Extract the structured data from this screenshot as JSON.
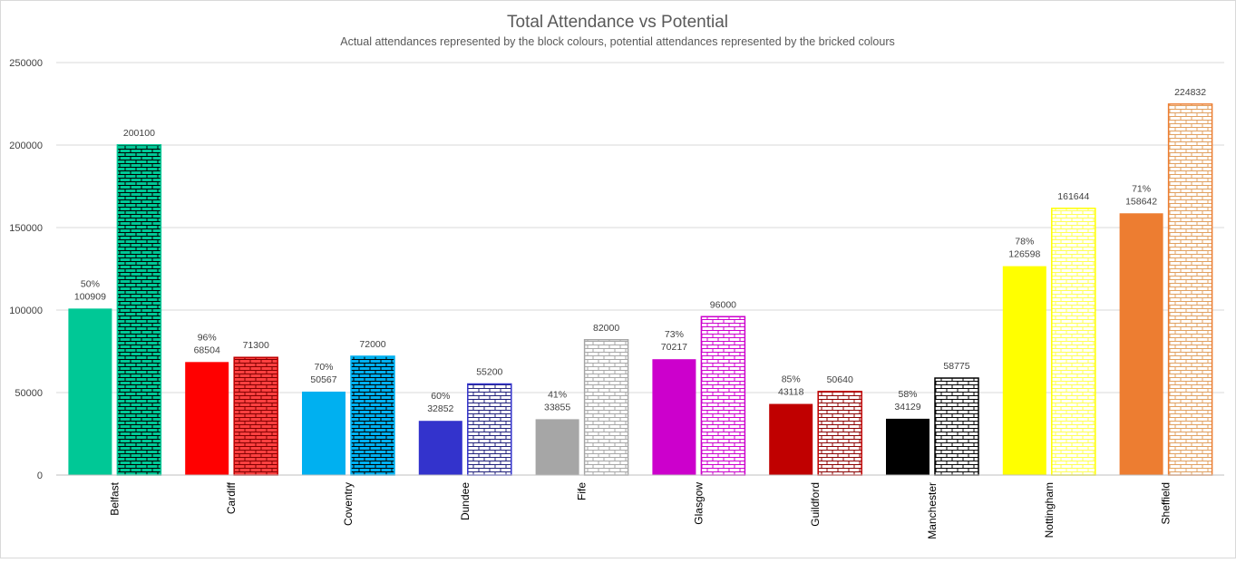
{
  "chart_data": {
    "type": "bar",
    "title": "Total Attendance vs Potential",
    "subtitle": "Actual attendances represented by the block colours, potential attendances represented by the bricked colours",
    "xlabel": "",
    "ylabel": "",
    "ylim": [
      0,
      250000
    ],
    "yticks": [
      0,
      50000,
      100000,
      150000,
      200000,
      250000
    ],
    "ytick_labels": [
      "0",
      "50000",
      "100000",
      "150000",
      "200000",
      "250000"
    ],
    "grid": true,
    "legend": "none",
    "categories": [
      "Belfast",
      "Cardiff",
      "Coventry",
      "Dundee",
      "Fife",
      "Glasgow",
      "Guildford",
      "Manchester",
      "Nottingham",
      "Sheffield"
    ],
    "series": [
      {
        "name": "Actual",
        "style": "solid",
        "values": [
          100909,
          68504,
          50567,
          32852,
          33855,
          70217,
          43118,
          34129,
          126598,
          158642
        ],
        "percent_labels": [
          "50%",
          "96%",
          "70%",
          "60%",
          "41%",
          "73%",
          "85%",
          "58%",
          "78%",
          "71%"
        ],
        "value_labels": [
          "100909",
          "68504",
          "50567",
          "32852",
          "33855",
          "70217",
          "43118",
          "34129",
          "126598",
          "158642"
        ],
        "colors": [
          "#00C896",
          "#FF0000",
          "#00B0F0",
          "#3333CC",
          "#A6A6A6",
          "#CC00CC",
          "#C00000",
          "#000000",
          "#FFFF00",
          "#ED7D31"
        ]
      },
      {
        "name": "Potential",
        "style": "brick",
        "values": [
          200100,
          71300,
          72000,
          55200,
          82000,
          96000,
          50640,
          58775,
          161644,
          224832
        ],
        "value_labels": [
          "200100",
          "71300",
          "72000",
          "55200",
          "82000",
          "96000",
          "50640",
          "58775",
          "161644",
          "224832"
        ],
        "brick_colors": [
          "#000000",
          "#7F0000",
          "#000000",
          "#1F1F7A",
          "#A6A6A6",
          "#CC00CC",
          "#8B0000",
          "#000000",
          "#FFFF55",
          "#E0A060"
        ],
        "mortar_colors": [
          "#00C896",
          "#FF4040",
          "#00B0F0",
          "#FFFFFF",
          "#FFFFFF",
          "#FFFFFF",
          "#FFFFFF",
          "#FFFFFF",
          "#FFFFFF",
          "#FFFFFF"
        ],
        "border_colors": [
          "#00C896",
          "#C00000",
          "#00B0F0",
          "#3333CC",
          "#A6A6A6",
          "#CC00CC",
          "#C00000",
          "#000000",
          "#FFFF00",
          "#ED7D31"
        ]
      }
    ]
  }
}
